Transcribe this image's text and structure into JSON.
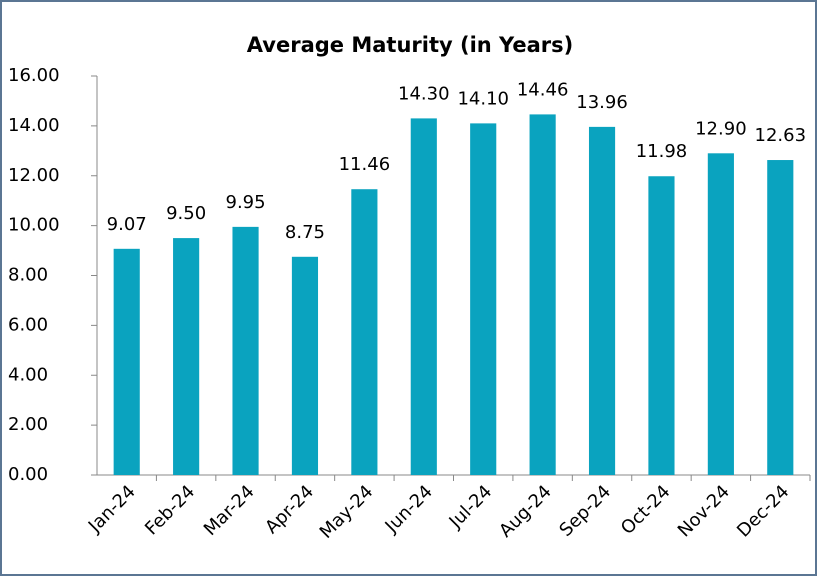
{
  "chart_data": {
    "type": "bar",
    "title": "Average Maturity (in Years)",
    "categories": [
      "Jan-24",
      "Feb-24",
      "Mar-24",
      "Apr-24",
      "May-24",
      "Jun-24",
      "Jul-24",
      "Aug-24",
      "Sep-24",
      "Oct-24",
      "Nov-24",
      "Dec-24"
    ],
    "values": [
      9.07,
      9.5,
      9.95,
      8.75,
      11.46,
      14.3,
      14.1,
      14.46,
      13.96,
      11.98,
      12.9,
      12.63
    ],
    "value_labels": [
      "9.07",
      "9.50",
      "9.95",
      "8.75",
      "11.46",
      "14.30",
      "14.10",
      "14.46",
      "13.96",
      "11.98",
      "12.90",
      "12.63"
    ],
    "color": "#0aa3bf",
    "ylim": [
      0,
      16
    ],
    "yticks": [
      {
        "value": 0,
        "label": "0.00"
      },
      {
        "value": 2,
        "label": "2.00"
      },
      {
        "value": 4,
        "label": "4.00"
      },
      {
        "value": 6,
        "label": "6.00"
      },
      {
        "value": 8,
        "label": "8.00"
      },
      {
        "value": 10,
        "label": "10.00"
      },
      {
        "value": 12,
        "label": "12.00"
      },
      {
        "value": 14,
        "label": "14.00"
      },
      {
        "value": 16,
        "label": "16.00"
      }
    ],
    "grid": false
  }
}
